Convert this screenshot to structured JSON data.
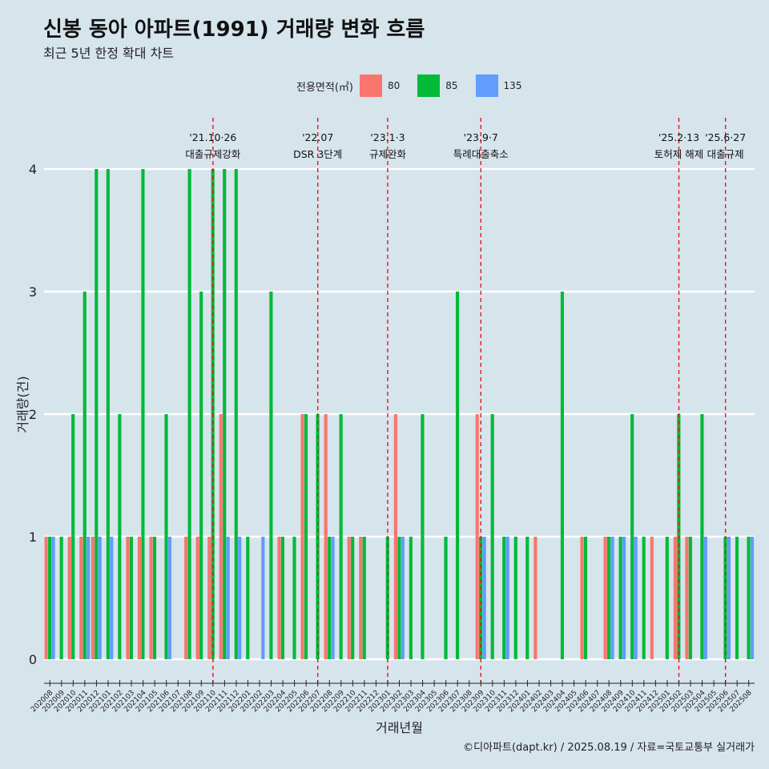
{
  "title": "신봉 동아 아파트(1991) 거래량 변화 흐름",
  "subtitle": "최근 5년 한정 확대 차트",
  "caption": "©디아파트(dapt.kr) / 2025.08.19 / 자료=국토교통부 실거래가",
  "legend": {
    "title": "전용면적(㎡)",
    "items": [
      {
        "label": "80",
        "color": "#f8766d"
      },
      {
        "label": "85",
        "color": "#00ba38"
      },
      {
        "label": "135",
        "color": "#619cff"
      }
    ]
  },
  "chart_data": {
    "type": "bar",
    "xlabel": "거래년월",
    "ylabel": "거래량(건)",
    "ylim": [
      0,
      4
    ],
    "yticks": [
      0,
      1,
      2,
      3,
      4
    ],
    "categories": [
      "202008",
      "202009",
      "202010",
      "202011",
      "202012",
      "202101",
      "202102",
      "202103",
      "202104",
      "202105",
      "202106",
      "202107",
      "202108",
      "202109",
      "202110",
      "202111",
      "202112",
      "202201",
      "202202",
      "202203",
      "202204",
      "202205",
      "202206",
      "202207",
      "202208",
      "202209",
      "202210",
      "202211",
      "202212",
      "202301",
      "202302",
      "202303",
      "202304",
      "202305",
      "202306",
      "202307",
      "202308",
      "202309",
      "202310",
      "202311",
      "202312",
      "202401",
      "202402",
      "202403",
      "202404",
      "202405",
      "202406",
      "202407",
      "202408",
      "202409",
      "202410",
      "202411",
      "202412",
      "202501",
      "202502",
      "202503",
      "202504",
      "202505",
      "202506",
      "202507",
      "202508"
    ],
    "series": [
      {
        "name": "80",
        "color": "#f8766d",
        "values": [
          1,
          0,
          1,
          1,
          1,
          0,
          0,
          1,
          1,
          1,
          0,
          0,
          1,
          1,
          1,
          2,
          0,
          0,
          0,
          0,
          1,
          0,
          2,
          0,
          2,
          0,
          1,
          1,
          0,
          0,
          2,
          0,
          0,
          0,
          0,
          0,
          0,
          2,
          0,
          0,
          0,
          0,
          1,
          0,
          0,
          0,
          1,
          0,
          1,
          0,
          0,
          0,
          1,
          0,
          1,
          1,
          0,
          0,
          0,
          0,
          0
        ]
      },
      {
        "name": "85",
        "color": "#00ba38",
        "values": [
          1,
          1,
          2,
          3,
          4,
          4,
          2,
          1,
          4,
          1,
          2,
          0,
          4,
          3,
          4,
          4,
          4,
          1,
          0,
          3,
          1,
          1,
          2,
          2,
          1,
          2,
          1,
          1,
          0,
          1,
          1,
          1,
          2,
          0,
          1,
          3,
          0,
          1,
          2,
          1,
          1,
          1,
          0,
          0,
          3,
          0,
          1,
          0,
          1,
          1,
          2,
          1,
          0,
          1,
          2,
          1,
          2,
          0,
          1,
          1,
          1
        ]
      },
      {
        "name": "135",
        "color": "#619cff",
        "values": [
          1,
          0,
          0,
          1,
          1,
          1,
          0,
          0,
          0,
          0,
          1,
          0,
          0,
          0,
          0,
          1,
          1,
          0,
          1,
          0,
          0,
          0,
          0,
          0,
          1,
          0,
          0,
          0,
          0,
          0,
          1,
          0,
          0,
          0,
          0,
          0,
          0,
          1,
          0,
          1,
          0,
          0,
          0,
          0,
          0,
          0,
          0,
          0,
          1,
          1,
          1,
          0,
          0,
          0,
          0,
          0,
          1,
          0,
          1,
          0,
          1
        ]
      }
    ],
    "annotations": [
      {
        "at": "202110",
        "date": "'21.10·26",
        "label": "대출규제강화"
      },
      {
        "at": "202207",
        "date": "'22.07",
        "label": "DSR 3단계"
      },
      {
        "at": "202301",
        "date": "'23.1·3",
        "label": "규제완화"
      },
      {
        "at": "202309",
        "date": "'23.9·7",
        "label": "특례대출축소"
      },
      {
        "at": "202502",
        "date": "'25.2·13",
        "label": "토허제 해제"
      },
      {
        "at": "202506",
        "date": "'25.6·27",
        "label": "대출규제"
      }
    ]
  }
}
